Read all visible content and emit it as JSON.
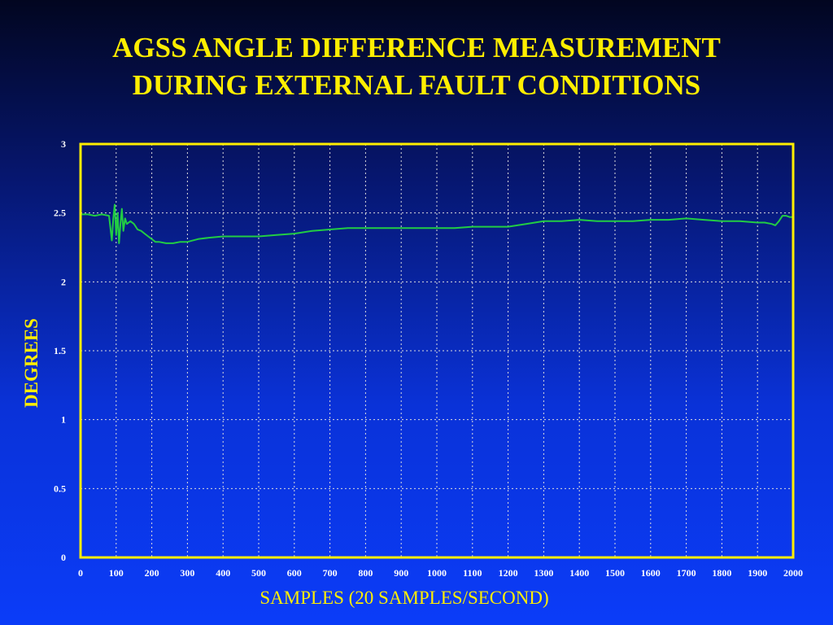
{
  "slide": {
    "title_line1": "AGSS ANGLE DIFFERENCE MEASUREMENT",
    "title_line2": "DURING EXTERNAL FAULT CONDITIONS"
  },
  "colors": {
    "title": "#ffee00",
    "plot_border": "#ffee00",
    "series_line": "#22cc44",
    "baseline": "#ff33aa",
    "grid": "#dddddd"
  },
  "chart_data": {
    "type": "line",
    "xlabel": "SAMPLES (20 SAMPLES/SECOND)",
    "ylabel": "DEGREES",
    "xlim": [
      0,
      2000
    ],
    "ylim": [
      0,
      3
    ],
    "xticks": [
      0,
      100,
      200,
      300,
      400,
      500,
      600,
      700,
      800,
      900,
      1000,
      1100,
      1200,
      1300,
      1400,
      1500,
      1600,
      1700,
      1800,
      1900,
      2000
    ],
    "yticks": [
      0,
      0.5,
      1,
      1.5,
      2,
      2.5,
      3
    ],
    "ytick_labels": [
      "0",
      "0.5",
      "1",
      "1.5",
      "2",
      "2.5",
      "3"
    ],
    "grid": true,
    "series": [
      {
        "x": [
          0,
          20,
          40,
          60,
          80,
          88,
          92,
          96,
          100,
          104,
          108,
          112,
          116,
          120,
          125,
          130,
          140,
          150,
          160,
          170,
          180,
          190,
          200,
          210,
          220,
          240,
          260,
          280,
          300,
          330,
          360,
          400,
          450,
          500,
          550,
          600,
          650,
          700,
          750,
          800,
          850,
          900,
          950,
          1000,
          1050,
          1100,
          1150,
          1200,
          1250,
          1300,
          1350,
          1400,
          1450,
          1500,
          1550,
          1600,
          1650,
          1700,
          1750,
          1800,
          1850,
          1900,
          1920,
          1940,
          1950,
          1960,
          1970,
          1980,
          1990,
          2000
        ],
        "y": [
          2.49,
          2.49,
          2.48,
          2.49,
          2.48,
          2.3,
          2.46,
          2.56,
          2.34,
          2.5,
          2.28,
          2.42,
          2.53,
          2.37,
          2.46,
          2.42,
          2.44,
          2.42,
          2.38,
          2.37,
          2.35,
          2.33,
          2.31,
          2.29,
          2.29,
          2.28,
          2.28,
          2.29,
          2.29,
          2.31,
          2.32,
          2.33,
          2.33,
          2.33,
          2.34,
          2.35,
          2.37,
          2.38,
          2.39,
          2.39,
          2.39,
          2.39,
          2.39,
          2.39,
          2.39,
          2.4,
          2.4,
          2.4,
          2.42,
          2.44,
          2.44,
          2.45,
          2.44,
          2.44,
          2.44,
          2.45,
          2.45,
          2.46,
          2.45,
          2.44,
          2.44,
          2.43,
          2.43,
          2.42,
          2.41,
          2.44,
          2.48,
          2.48,
          2.47,
          2.47
        ]
      },
      {
        "x": [
          0,
          2000
        ],
        "y": [
          0,
          0
        ]
      }
    ]
  }
}
